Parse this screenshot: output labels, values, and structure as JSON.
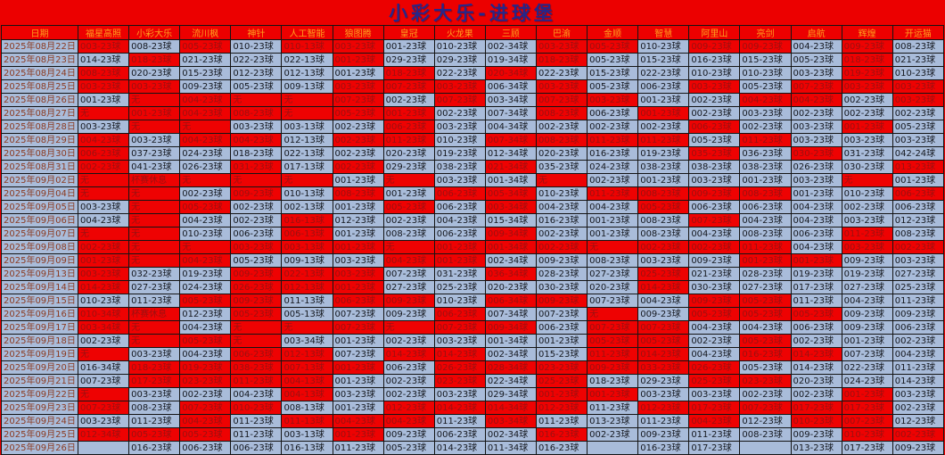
{
  "title": "小彩大乐-进球堡",
  "colors": {
    "page_red": "#ec0000",
    "cell_blue": "#a9bcda",
    "red_cell_bg": "#ee0202",
    "red_cell_text": "#9c1010",
    "header_orange": "#ffa01e",
    "title_navy": "#26268a",
    "date_text": "#8b3a20",
    "grid_line": "#141414"
  },
  "table": {
    "columns": [
      "日期",
      "福星高照",
      "小彩大乐",
      "流川枫",
      "神针",
      "人工智能",
      "狼图腾",
      "皇冠",
      "火龙果",
      "三顾",
      "巴渝",
      "金顺",
      "智慧",
      "阿里山",
      "亮剑",
      "启航",
      "辉煌",
      "开运猫"
    ],
    "cell_note": "cells prefixed R| are red-on-red cells; plain cells are blue; empty string is a blank blue cell",
    "rows": [
      [
        "2025年08月22日",
        "R|003-23球",
        "008-23球",
        "R|005-23球",
        "010-23球",
        "R|010-13球",
        "R|003-23球",
        "001-23球",
        "010-23球",
        "002-34球",
        "R|003-23球",
        "R|005-23球",
        "010-23球",
        "R|009-23球",
        "R|009-23球",
        "004-23球",
        "R|009-23球",
        "008-23球"
      ],
      [
        "2025年08月23日",
        "014-23球",
        "R|018-23球",
        "021-23球",
        "022-23球",
        "022-13球",
        "R|001-23球",
        "029-23球",
        "029-23球",
        "019-34球",
        "R|018-23球",
        "005-23球",
        "015-23球",
        "016-23球",
        "015-23球",
        "005-23球",
        "R|018-23球",
        "021-23球"
      ],
      [
        "2025年08月24日",
        "R|008-23球",
        "020-23球",
        "015-23球",
        "012-23球",
        "012-13球",
        "001-23球",
        "R|018-23球",
        "022-23球",
        "R|020-34球",
        "022-23球",
        "015-23球",
        "022-23球",
        "010-23球",
        "010-23球",
        "003-23球",
        "R|019-23球",
        "010-23球"
      ],
      [
        "2025年08月25日",
        "R|003-23球",
        "R|003-23球",
        "009-23球",
        "005-23球",
        "009-13球",
        "R|003-23球",
        "R|007-23球",
        "R|003-23球",
        "006-34球",
        "R|003-23球",
        "005-23球",
        "006-23球",
        "R|003-23球",
        "005-23球",
        "R|007-23球",
        "R|003-23球",
        "R|003-23球"
      ],
      [
        "2025年08月26日",
        "001-23球",
        "R|无",
        "R|004-23球",
        "R|无",
        "R|无",
        "R|007-23球",
        "002-23球",
        "R|007-23球",
        "003-34球",
        "R|007-23球",
        "R|003-23球",
        "001-23球",
        "002-23球",
        "R|004-23球",
        "R|004-23球",
        "002-23球",
        "R|003-23球"
      ],
      [
        "2025年08月27日",
        "R|无",
        "R|001-23球",
        "R|004-23球",
        "R|008-23球",
        "R|无",
        "R|005-23球",
        "R|001-23球",
        "002-23球",
        "007-34球",
        "R|008-23球",
        "006-23球",
        "R|001-23球",
        "002-23球",
        "003-23球",
        "002-23球",
        "002-23球",
        "002-23球"
      ],
      [
        "2025年08月28日",
        "003-23球",
        "R|无",
        "R|无",
        "003-23球",
        "003-13球",
        "002-23球",
        "R|006-23球",
        "003-23球",
        "004-34球",
        "002-23球",
        "002-23球",
        "002-23球",
        "R|006-23球",
        "002-23球",
        "003-23球",
        "R|001-23球",
        "005-23球"
      ],
      [
        "2025年08月29日",
        "R|004-23球",
        "003-23球",
        "R|004-23球",
        "R|004-23球",
        "012-13球",
        "R|002-23球",
        "R|011-23球",
        "010-23球",
        "R|007-34球",
        "R|008-23球",
        "R|011-23球",
        "R|011-23球",
        "005-23球",
        "R|011-23球",
        "003-23球",
        "003-23球",
        "003-23球"
      ],
      [
        "2025年08月30日",
        "R|006-23球",
        "037-23球",
        "024-23球",
        "018-23球",
        "022-13球",
        "002-23球",
        "020-23球",
        "019-23球",
        "012-34球",
        "020-23球",
        "016-23球",
        "019-23球",
        "R|035-23球",
        "036-23球",
        "R|030-23球",
        "031-23球",
        "042-24球"
      ],
      [
        "2025年08月31日",
        "R|002-23球",
        "041-23球",
        "026-23球",
        "R|031-23球",
        "017-13球",
        "R|002-23球",
        "029-23球",
        "038-23球",
        "R|021-34球",
        "035-23球",
        "024-23球",
        "038-23球",
        "038-23球",
        "038-23球",
        "026-23球",
        "030-23球",
        "R|013-23球"
      ],
      [
        "2025年09月02日",
        "R|无",
        "R|杯赛休息",
        "R|无",
        "R|无",
        "R|无",
        "001-23球",
        "R|无",
        "003-23球",
        "001-34球",
        "R|无",
        "002-23球",
        "001-23球",
        "003-23球",
        "001-23球",
        "003-23球",
        "R|无",
        "001-23球"
      ],
      [
        "2025年09月04日",
        "R|无",
        "R|无",
        "002-23球",
        "R|009-23球",
        "010-13球",
        "R|008-23球",
        "001-23球",
        "R|006-23球",
        "R|005-34球",
        "010-23球",
        "R|011-23球",
        "R|008-23球",
        "R|009-23球",
        "R|008-23球",
        "001-23球",
        "010-23球",
        "R|006-23球"
      ],
      [
        "2025年09月05日",
        "003-23球",
        "R|无",
        "R|005-23球",
        "002-23球",
        "002-13球",
        "001-23球",
        "R|005-23球",
        "006-23球",
        "R|003-34球",
        "004-23球",
        "004-23球",
        "R|005-23球",
        "006-23球",
        "006-23球",
        "004-23球",
        "002-23球",
        "006-23球"
      ],
      [
        "2025年09月06日",
        "004-23球",
        "R|无",
        "004-23球",
        "002-23球",
        "R|016-13球",
        "012-23球",
        "002-23球",
        "004-23球",
        "015-34球",
        "016-23球",
        "001-23球",
        "008-23球",
        "R|007-23球",
        "004-23球",
        "004-23球",
        "003-23球",
        "012-23球"
      ],
      [
        "2025年09月07日",
        "R|无",
        "R|无",
        "010-23球",
        "006-23球",
        "R|006-13球",
        "001-23球",
        "008-23球",
        "006-23球",
        "R|009-34球",
        "002-23球",
        "001-23球",
        "008-23球",
        "004-23球",
        "008-23球",
        "006-23球",
        "R|011-23球",
        "008-23球"
      ],
      [
        "2025年09月08日",
        "R|002-23球",
        "R|无",
        "R|无",
        "R|003-23球",
        "R|003-13球",
        "R|001-23球",
        "R|无",
        "R|001-23球",
        "R|001-34球",
        "R|002-23球",
        "R|无",
        "R|002-23球",
        "R|002-23球",
        "R|011-23球",
        "004-23球",
        "R|003-23球",
        "R|002-23球"
      ],
      [
        "2025年09月09日",
        "R|001-23球",
        "R|无",
        "R|004-23球",
        "005-23球",
        "009-13球",
        "003-23球",
        "R|004-23球",
        "R|001-23球",
        "002-34球",
        "009-23球",
        "008-23球",
        "003-23球",
        "009-23球",
        "R|001-23球",
        "R|001-23球",
        "009-23球",
        "003-23球"
      ],
      [
        "2025年09月13日",
        "R|003-23球",
        "032-23球",
        "019-23球",
        "R|009-23球",
        "R|022-13球",
        "R|003-23球",
        "007-23球",
        "031-23球",
        "R|036-34球",
        "028-23球",
        "027-23球",
        "R|025-23球",
        "021-23球",
        "028-23球",
        "019-23球",
        "019-23球",
        "027-23球"
      ],
      [
        "2025年09月14日",
        "R|014-23球",
        "027-23球",
        "024-23球",
        "R|026-23球",
        "R|012-13球",
        "R|001-23球",
        "027-23球",
        "025-23球",
        "020-23球",
        "030-23球",
        "020-23球",
        "R|014-23球",
        "030-23球",
        "027-23球",
        "017-23球",
        "027-23球",
        "025-23球"
      ],
      [
        "2025年09月15日",
        "010-23球",
        "011-23球",
        "R|005-23球",
        "R|009-23球",
        "011-13球",
        "R|006-23球",
        "R|009-23球",
        "010-23球",
        "R|006-34球",
        "R|009-23球",
        "007-23球",
        "004-23球",
        "R|009-23球",
        "R|005-23球",
        "011-23球",
        "004-23球",
        "011-23球"
      ],
      [
        "2025年09月16日",
        "R|010-34球",
        "R|杯赛休息",
        "012-23球",
        "R|005-23球",
        "005-13球",
        "007-23球",
        "009-23球",
        "R|006-23球",
        "007-34球",
        "007-23球",
        "R|无",
        "009-23球",
        "R|005-23球",
        "R|005-23球",
        "R|005-23球",
        "009-23球",
        "009-23球"
      ],
      [
        "2025年09月17日",
        "R|003-34球",
        "R|无",
        "004-23球",
        "R|无",
        "R|无",
        "R|007-23球",
        "R|无",
        "R|007-23球",
        "R|009-34球",
        "006-23球",
        "R|007-23球",
        "R|007-23球",
        "004-23球",
        "004-23球",
        "006-23球",
        "009-23球",
        "006-23球"
      ],
      [
        "2025年09月18日",
        "002-23球",
        "R|无",
        "R|005-23球",
        "R|无",
        "003-34球",
        "001-23球",
        "002-23球",
        "003-23球",
        "001-34球",
        "001-23球",
        "R|005-23球",
        "R|005-23球",
        "002-23球",
        "R|005-23球",
        "002-23球",
        "001-23球",
        "002-23球"
      ],
      [
        "2025年09月19日",
        "R|无",
        "003-23球",
        "004-23球",
        "R|006-23球",
        "R|012-13球",
        "007-23球",
        "R|014-23球",
        "R|014-23球",
        "002-34球",
        "015-23球",
        "R|011-23球",
        "R|014-23球",
        "004-23球",
        "R|016-23球",
        "R|014-23球",
        "007-23球",
        "004-23球"
      ],
      [
        "2025年09月20日",
        "016-34球",
        "R|018-23球",
        "R|019-23球",
        "R|038-23球",
        "R|007-13球",
        "R|001-23球",
        "006-23球",
        "R|026-23球",
        "R|028-34球",
        "R|023-23球",
        "R|009-23球",
        "R|033-23球",
        "R|026-23球",
        "005-23球",
        "014-23球",
        "022-23球",
        "011-23球"
      ],
      [
        "2025年09月21日",
        "007-23球",
        "R|017-23球",
        "R|023-23球",
        "R|011-23球",
        "R|004-13球",
        "001-23球",
        "002-23球",
        "R|023-23球",
        "022-34球",
        "R|025-23球",
        "018-23球",
        "029-23球",
        "R|025-23球",
        "R|023-23球",
        "020-23球",
        "024-23球",
        "014-23球"
      ],
      [
        "2025年09月22日",
        "R|无",
        "003-23球",
        "002-23球",
        "004-23球",
        "R|004-13球",
        "003-23球",
        "002-23球",
        "003-23球",
        "029-34球",
        "R|001-23球",
        "R|001-23球",
        "003-23球",
        "003-23球",
        "002-23球",
        "002-23球",
        "R|001-23球",
        "003-23球"
      ],
      [
        "2025年09月23日",
        "R|007-23球",
        "008-23球",
        "R|007-23球",
        "R|010-23球",
        "008-13球",
        "001-23球",
        "R|012-23球",
        "R|014-23球",
        "R|014-34球",
        "R|012-23球",
        "011-23球",
        "R|012-23球",
        "R|017-23球",
        "R|007-23球",
        "R|017-23球",
        "R|017-23球",
        "002-23球"
      ],
      [
        "2025年09月24日",
        "003-23球",
        "011-23球",
        "R|004-23球",
        "011-23球",
        "R|011-13球",
        "R|004-23球",
        "R|004-23球",
        "011-23球",
        "R|003-34球",
        "011-23球",
        "013-23球",
        "011-23球",
        "R|004-23球",
        "012-23球",
        "R|010-23球",
        "R|007-23球",
        "012-23球"
      ],
      [
        "2025年09月25日",
        "R|012-34球",
        "R|005-23球",
        "R|005-23球",
        "011-23球",
        "003-13球",
        "R|001-23球",
        "009-23球",
        "006-23球",
        "002-34球",
        "R|016-23球",
        "002-23球",
        "009-23球",
        "011-23球",
        "008-23球",
        "009-23球",
        "R|010-23球",
        "R|002-23球"
      ],
      [
        "2025年09月26日",
        "",
        "016-23球",
        "006-23球",
        "006-23球",
        "016-13球",
        "011-23球",
        "005-23球",
        "014-23球",
        "011-34球",
        "016-23球",
        "",
        "016-23球",
        "017-23球",
        "",
        "013-23球",
        "017-23球",
        "009-23球"
      ]
    ]
  }
}
